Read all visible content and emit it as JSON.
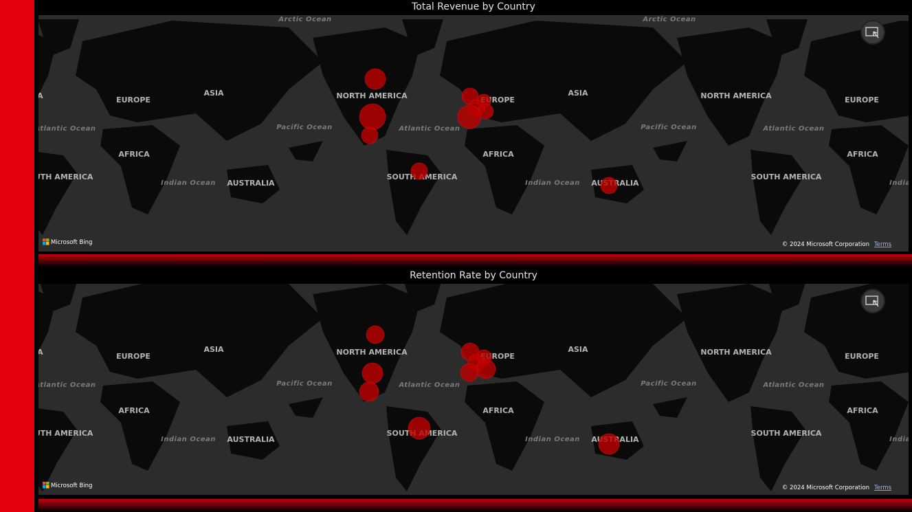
{
  "map_labels": [
    "Arctic Ocean",
    "ASIA",
    "EUROPE",
    "NORTH AMERICA",
    "Atlantic Ocean",
    "Pacific Ocean",
    "AFRICA",
    "SOUTH AMERICA",
    "Indian Ocean",
    "AUSTRALIA"
  ],
  "panels": [
    {
      "title": "Total Revenue by Country",
      "bubbles": [
        225,
        361,
        144,
        144,
        144,
        100,
        144,
        121,
        289,
        144
      ],
      "attribution": "Microsoft Bing",
      "copyright": "© 2024 Microsoft Corporation",
      "terms": "Terms"
    },
    {
      "title": "Retention Rate by Country",
      "bubbles": [
        169,
        225,
        196,
        256,
        169,
        121,
        144,
        196,
        169,
        225
      ],
      "attribution": "Microsoft Bing",
      "copyright": "© 2024 Microsoft Corporation",
      "terms": "Terms"
    }
  ]
}
